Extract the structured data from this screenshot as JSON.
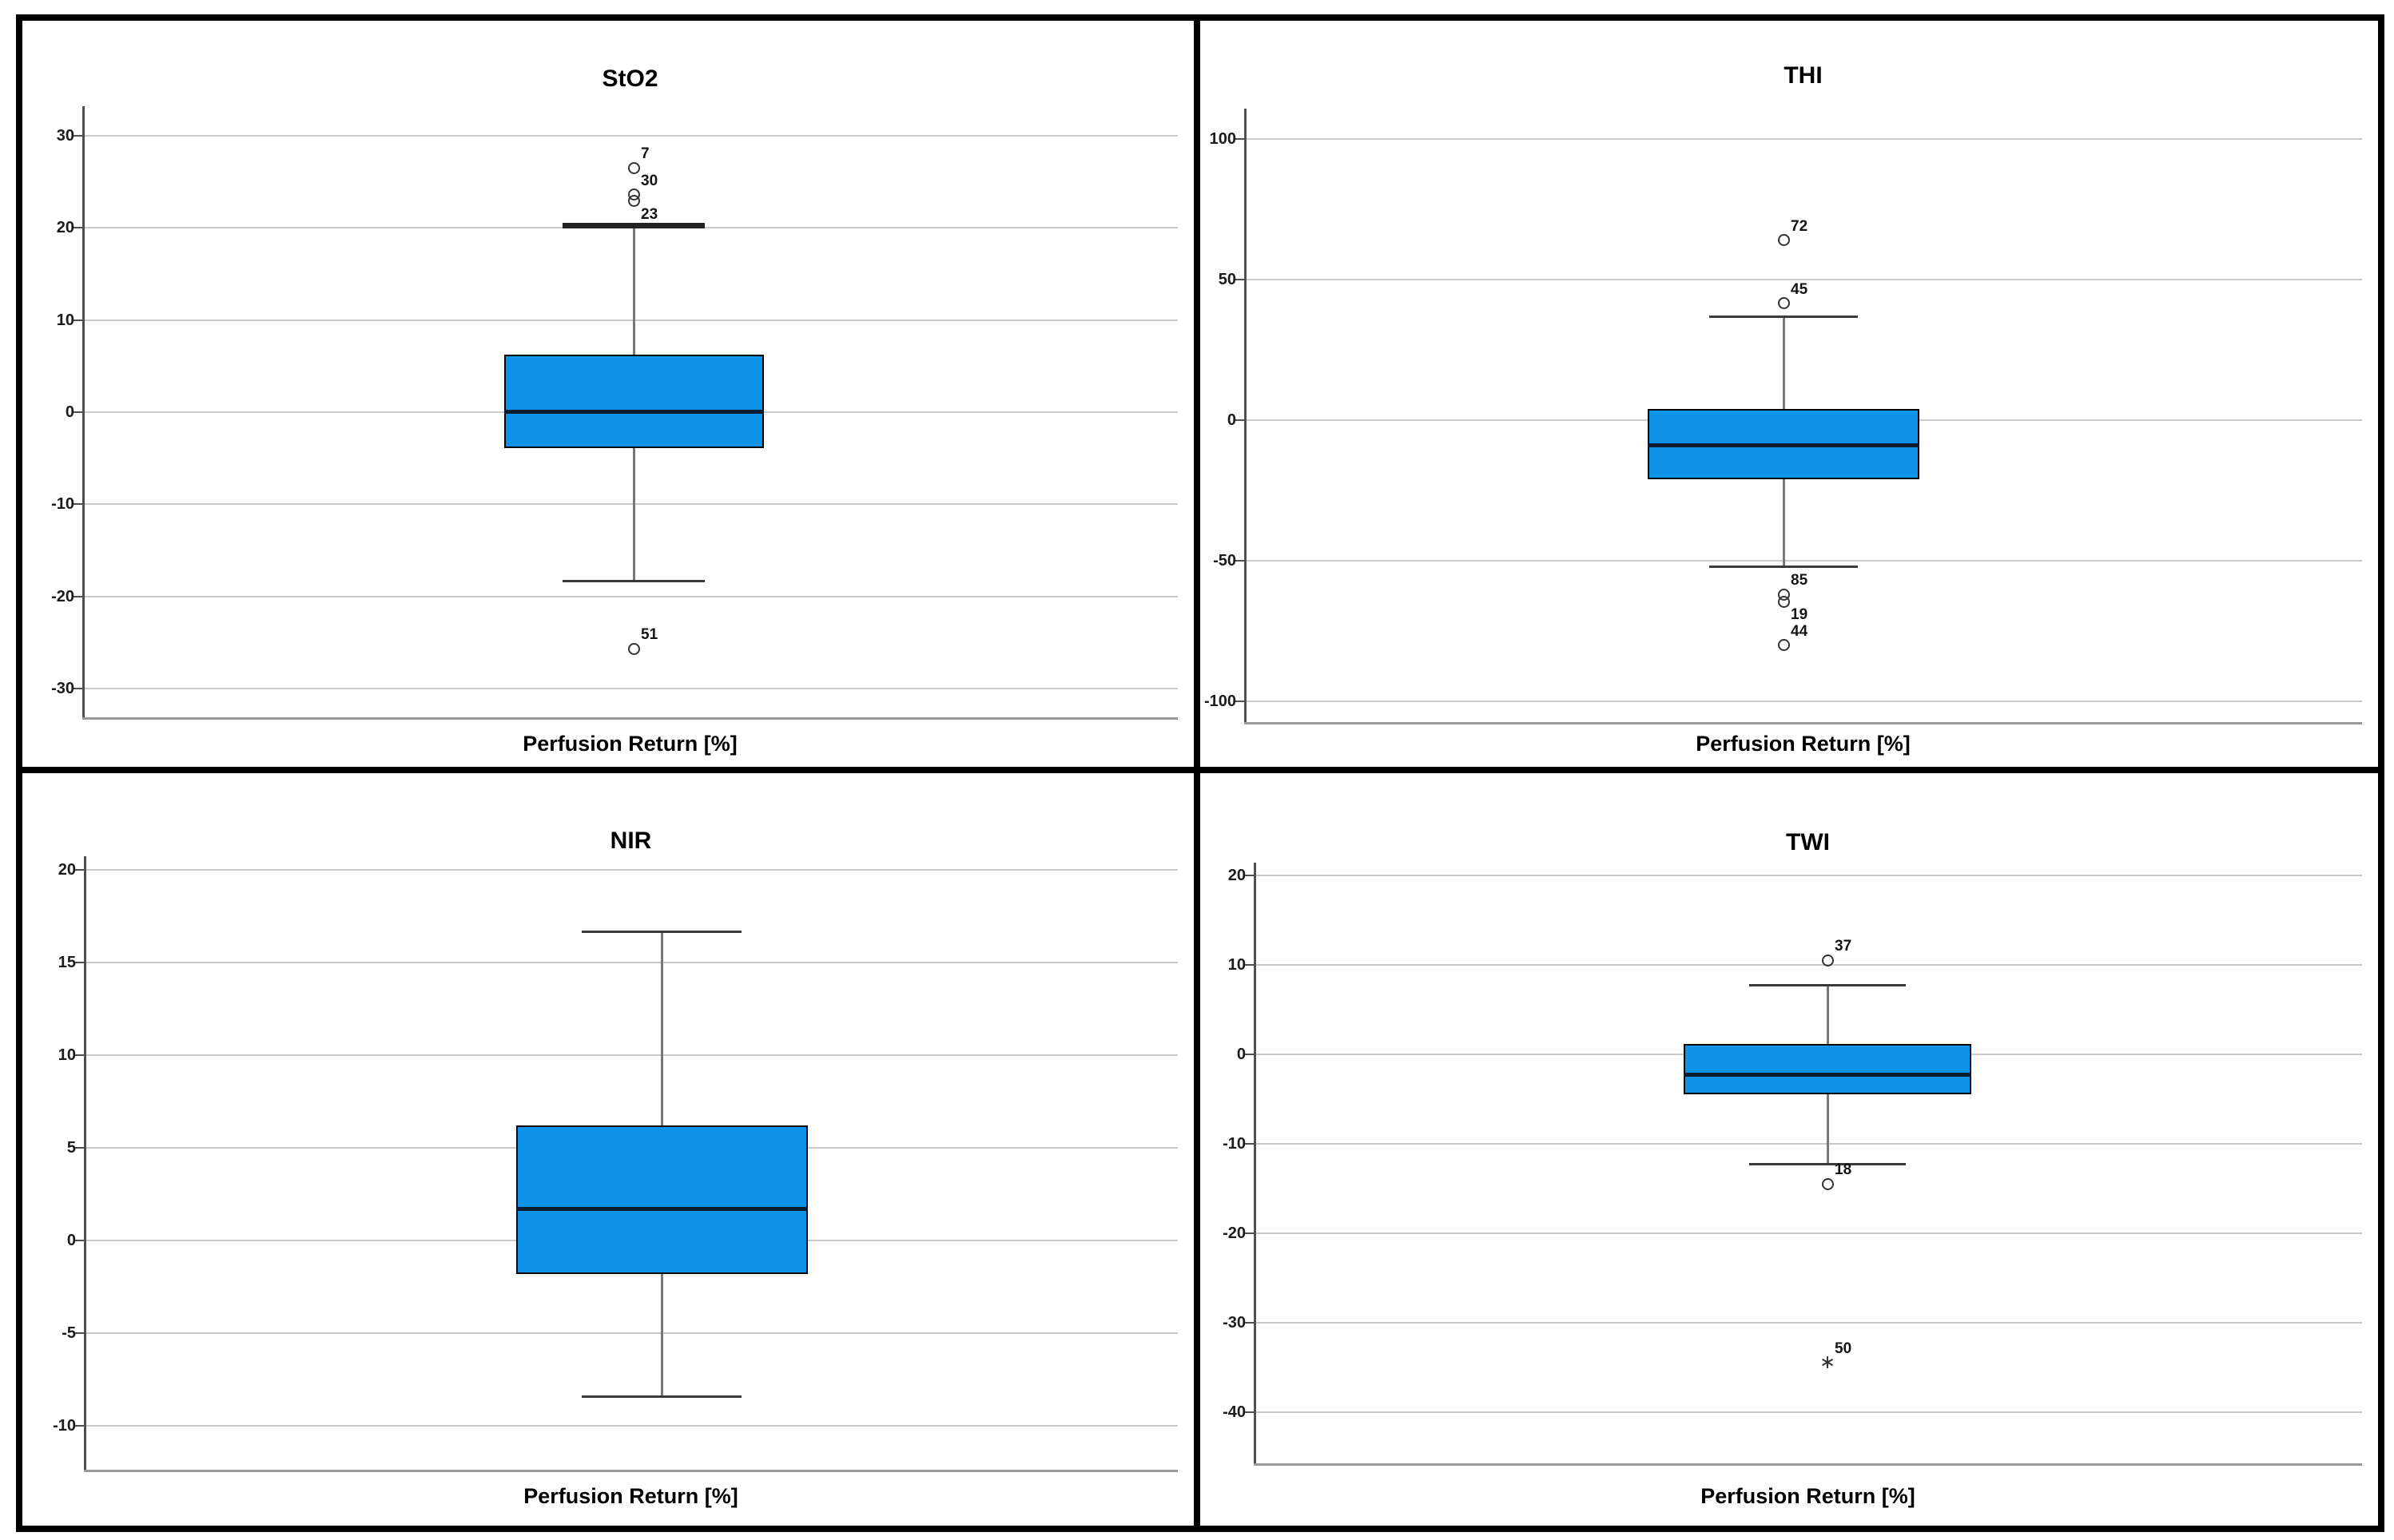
{
  "figure": {
    "frame_color": "#000000",
    "background": "#ffffff"
  },
  "colors": {
    "box_fill": "#0D93E8",
    "box_border": "#000000",
    "median": "#0C1C30",
    "whisker": "#787878",
    "cap": "#3A3A3A",
    "thick_cap": "#222222",
    "grid": "#CACACA",
    "axis": "#4F4F4F",
    "baseline": "#999999",
    "tick_text": "#1B1B1B",
    "outlier_marker": "#333333"
  },
  "chart_data": [
    {
      "type": "box",
      "title": "StO2",
      "xlabel": "Perfusion Return [%]",
      "ylabel": "",
      "ylim": [
        -33,
        33
      ],
      "grid": true,
      "legend": "none",
      "yticks": [
        30,
        20,
        10,
        0,
        -10,
        -20,
        -30
      ],
      "box": {
        "q1": -3.9,
        "median": 0,
        "q3": 6.2,
        "whisker_low": -18.3,
        "whisker_high": 20.3
      },
      "outliers": [
        {
          "value": 26.5,
          "label": "7",
          "marker": "circle",
          "label_pos": "above"
        },
        {
          "value": 23.6,
          "label": "30",
          "marker": "circle",
          "label_pos": "above"
        },
        {
          "value": 22.9,
          "label": "23",
          "marker": "circle",
          "label_pos": "below"
        },
        {
          "value": -25.7,
          "label": "51",
          "marker": "circle",
          "label_pos": "above"
        }
      ]
    },
    {
      "type": "box",
      "title": "THI",
      "xlabel": "Perfusion Return [%]",
      "ylabel": "",
      "ylim": [
        -107,
        111
      ],
      "grid": true,
      "legend": "none",
      "yticks": [
        100,
        50,
        0,
        -50,
        -100
      ],
      "box": {
        "q1": -21,
        "median": -9,
        "q3": 4,
        "whisker_low": -52,
        "whisker_high": 37
      },
      "outliers": [
        {
          "value": 64,
          "label": "72",
          "marker": "circle",
          "label_pos": "above"
        },
        {
          "value": 41.5,
          "label": "45",
          "marker": "circle",
          "label_pos": "above"
        },
        {
          "value": -62,
          "label": "85",
          "marker": "circle",
          "label_pos": "above"
        },
        {
          "value": -64.5,
          "label": "19",
          "marker": "circle",
          "label_pos": "below"
        },
        {
          "value": -80,
          "label": "44",
          "marker": "circle",
          "label_pos": "above"
        }
      ]
    },
    {
      "type": "box",
      "title": "NIR",
      "xlabel": "Perfusion Return [%]",
      "ylabel": "",
      "ylim": [
        -12.4,
        20.7
      ],
      "grid": true,
      "legend": "none",
      "yticks": [
        20,
        15,
        10,
        5,
        0,
        -5,
        -10
      ],
      "box": {
        "q1": -1.8,
        "median": 1.7,
        "q3": 6.2,
        "whisker_low": -8.4,
        "whisker_high": 16.7
      },
      "outliers": []
    },
    {
      "type": "box",
      "title": "TWI",
      "xlabel": "Perfusion Return [%]",
      "ylabel": "",
      "ylim": [
        -45.7,
        21.4
      ],
      "grid": true,
      "legend": "none",
      "yticks": [
        20,
        10,
        0,
        -10,
        -20,
        -30,
        -40
      ],
      "box": {
        "q1": -4.5,
        "median": -2.3,
        "q3": 1.2,
        "whisker_low": -12.2,
        "whisker_high": 7.8
      },
      "outliers": [
        {
          "value": 10.5,
          "label": "37",
          "marker": "circle",
          "label_pos": "above"
        },
        {
          "value": -14.5,
          "label": "18",
          "marker": "circle",
          "label_pos": "above"
        },
        {
          "value": -34.5,
          "label": "50",
          "marker": "star",
          "label_pos": "above"
        }
      ]
    }
  ]
}
